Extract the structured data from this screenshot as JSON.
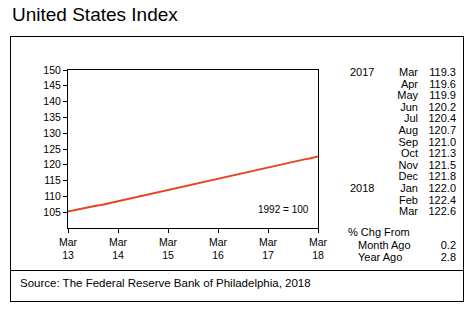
{
  "chart_data": {
    "type": "line",
    "title": "United States Index",
    "categories": [
      "Mar\n13",
      null,
      null,
      null,
      null,
      null,
      null,
      null,
      null,
      null,
      null,
      null,
      "Mar\n14",
      null,
      null,
      null,
      null,
      null,
      null,
      null,
      null,
      null,
      null,
      null,
      "Mar\n15",
      null,
      null,
      null,
      null,
      null,
      null,
      null,
      null,
      null,
      null,
      null,
      "Mar\n16",
      null,
      null,
      null,
      null,
      null,
      null,
      null,
      null,
      null,
      null,
      null,
      "Mar\n17",
      null,
      null,
      null,
      null,
      null,
      null,
      null,
      null,
      null,
      null,
      null,
      "Mar\n18"
    ],
    "values": [
      105.2,
      105.5,
      105.7,
      106.0,
      106.3,
      106.5,
      106.8,
      107.1,
      107.3,
      107.6,
      107.9,
      108.1,
      108.4,
      108.7,
      109.0,
      109.3,
      109.6,
      109.9,
      110.2,
      110.5,
      110.8,
      111.1,
      111.4,
      111.7,
      112.0,
      112.3,
      112.6,
      112.9,
      113.2,
      113.5,
      113.8,
      114.1,
      114.4,
      114.7,
      115.0,
      115.3,
      115.6,
      115.9,
      116.2,
      116.5,
      116.8,
      117.1,
      117.5,
      117.8,
      118.1,
      118.4,
      118.7,
      119.0,
      119.3,
      119.6,
      119.9,
      120.2,
      120.4,
      120.7,
      121.0,
      121.3,
      121.5,
      121.8,
      122.0,
      122.4,
      122.6
    ],
    "color": "#e8441e",
    "ylim": [
      100,
      150
    ],
    "yticks": [
      105,
      110,
      115,
      120,
      125,
      130,
      135,
      140,
      145,
      150
    ],
    "grid": false,
    "annotations": [
      "1992 = 100"
    ]
  },
  "side_table": {
    "rows": [
      {
        "year": "2017",
        "month": "Mar",
        "value": "119.3"
      },
      {
        "month": "Apr",
        "value": "119.6"
      },
      {
        "month": "May",
        "value": "119.9"
      },
      {
        "month": "Jun",
        "value": "120.2"
      },
      {
        "month": "Jul",
        "value": "120.4"
      },
      {
        "month": "Aug",
        "value": "120.7"
      },
      {
        "month": "Sep",
        "value": "121.0"
      },
      {
        "month": "Oct",
        "value": "121.3"
      },
      {
        "month": "Nov",
        "value": "121.5"
      },
      {
        "month": "Dec",
        "value": "121.8"
      },
      {
        "year": "2018",
        "month": "Jan",
        "value": "122.0"
      },
      {
        "month": "Feb",
        "value": "122.4"
      },
      {
        "month": "Mar",
        "value": "122.6"
      }
    ],
    "change_header": "% Chg From",
    "change_rows": [
      {
        "label": "Month Ago",
        "value": "0.2"
      },
      {
        "label": "Year Ago",
        "value": "2.8"
      }
    ]
  },
  "source": "Source:  The Federal Reserve Bank of Philadelphia, 2018"
}
